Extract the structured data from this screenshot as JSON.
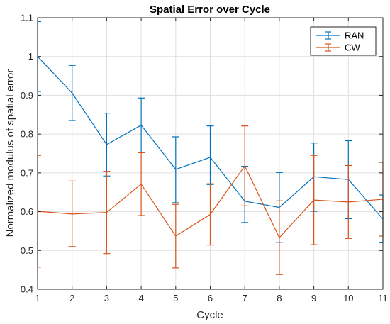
{
  "chart_data": {
    "type": "line",
    "title": "Spatial Error over Cycle",
    "xlabel": "Cycle",
    "ylabel": "Normalized modulus of spatial error",
    "xlim": [
      1,
      11
    ],
    "ylim": [
      0.4,
      1.1
    ],
    "x_ticks": [
      1,
      2,
      3,
      4,
      5,
      6,
      7,
      8,
      9,
      10,
      11
    ],
    "y_ticks": [
      0.4,
      0.5,
      0.6,
      0.7,
      0.8,
      0.9,
      1,
      1.1
    ],
    "grid": true,
    "legend_position": "top-right",
    "error_bars": true,
    "series": [
      {
        "name": "RAN",
        "color": "#0072BD",
        "x": [
          1,
          2,
          3,
          4,
          5,
          6,
          7,
          8,
          9,
          10,
          11
        ],
        "values": [
          1.0,
          0.906,
          0.773,
          0.823,
          0.709,
          0.74,
          0.627,
          0.611,
          0.69,
          0.683,
          0.581
        ],
        "lower": [
          0.91,
          0.835,
          0.692,
          0.753,
          0.623,
          0.67,
          0.572,
          0.521,
          0.601,
          0.582,
          0.52
        ],
        "upper": [
          1.09,
          0.977,
          0.854,
          0.893,
          0.793,
          0.821,
          0.717,
          0.701,
          0.777,
          0.783,
          0.643
        ]
      },
      {
        "name": "CW",
        "color": "#D95319",
        "x": [
          1,
          2,
          3,
          4,
          5,
          6,
          7,
          8,
          9,
          10,
          11
        ],
        "values": [
          0.601,
          0.594,
          0.598,
          0.671,
          0.537,
          0.593,
          0.718,
          0.533,
          0.63,
          0.625,
          0.632
        ],
        "lower": [
          0.457,
          0.51,
          0.492,
          0.59,
          0.455,
          0.514,
          0.615,
          0.438,
          0.515,
          0.531,
          0.537
        ],
        "upper": [
          0.745,
          0.679,
          0.704,
          0.752,
          0.619,
          0.672,
          0.821,
          0.628,
          0.745,
          0.719,
          0.727
        ]
      }
    ]
  }
}
